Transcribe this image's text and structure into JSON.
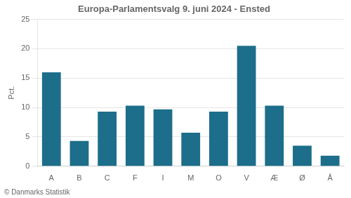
{
  "chart_data": {
    "type": "bar",
    "title": "Europa-Parlamentsvalg 9. juni 2024 - Ensted",
    "categories": [
      "A",
      "B",
      "C",
      "F",
      "I",
      "M",
      "O",
      "V",
      "Æ",
      "Ø",
      "Å"
    ],
    "values": [
      16.0,
      4.3,
      9.3,
      10.3,
      9.7,
      5.7,
      9.3,
      20.5,
      10.3,
      3.5,
      1.8
    ],
    "color": "#1c6e8a",
    "ylabel": "Pct.",
    "ylim": [
      0,
      25
    ],
    "yticks": [
      0,
      5,
      10,
      15,
      20,
      25
    ],
    "grid": true,
    "footer": "© Danmarks Statistik"
  }
}
